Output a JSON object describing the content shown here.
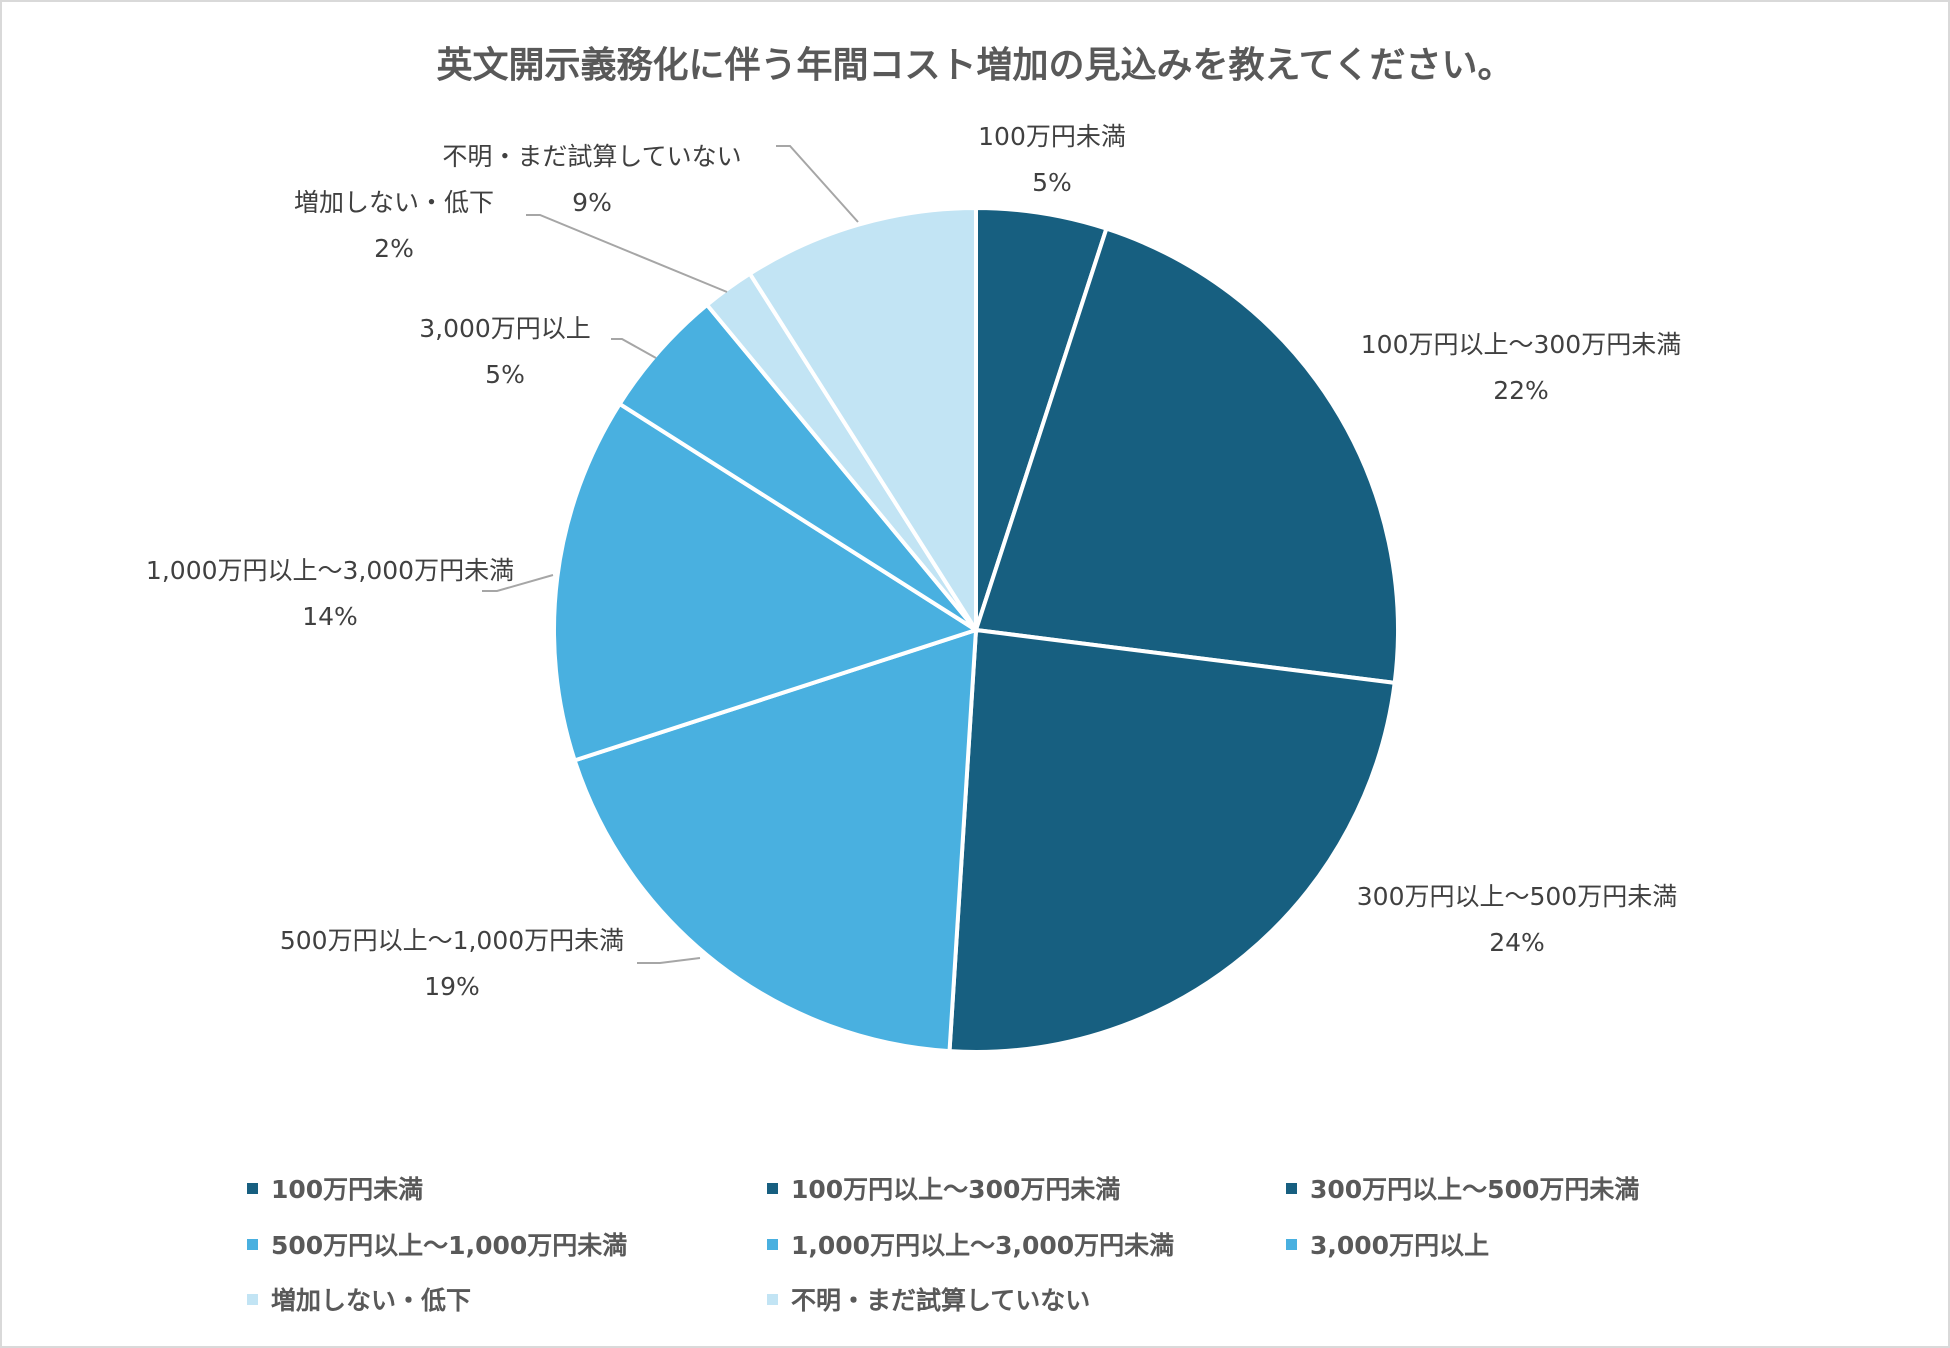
{
  "chart_data": {
    "type": "pie",
    "title": "英文開示義務化に伴う年間コスト増加の見込みを教えてください。",
    "categories": [
      "100万円未満",
      "100万円以上～300万円未満",
      "300万円以上～500万円未満",
      "500万円以上～1,000万円未満",
      "1,000万円以上～3,000万円未満",
      "3,000万円以上",
      "増加しない・低下",
      "不明・まだ試算していない"
    ],
    "values": [
      5,
      22,
      24,
      19,
      14,
      5,
      2,
      9
    ],
    "value_labels": [
      "5%",
      "22%",
      "24%",
      "19%",
      "14%",
      "5%",
      "2%",
      "9%"
    ],
    "unit": "%",
    "colors": [
      "#175f80",
      "#175f80",
      "#175f80",
      "#49b0e0",
      "#49b0e0",
      "#49b0e0",
      "#c2e4f4",
      "#c2e4f4"
    ],
    "start_angle_deg": 0,
    "direction": "clockwise",
    "legend_position": "bottom",
    "data_labels": "outside with leader lines"
  },
  "title": "英文開示義務化に伴う年間コスト増加の見込みを教えてください。",
  "labels": [
    {
      "name": "100万円未満",
      "pct": "5%"
    },
    {
      "name": "100万円以上～300万円未満",
      "pct": "22%"
    },
    {
      "name": "300万円以上～500万円未満",
      "pct": "24%"
    },
    {
      "name": "500万円以上～1,000万円未満",
      "pct": "19%"
    },
    {
      "name": "1,000万円以上～3,000万円未満",
      "pct": "14%"
    },
    {
      "name": "3,000万円以上",
      "pct": "5%"
    },
    {
      "name": "増加しない・低下",
      "pct": "2%"
    },
    {
      "name": "不明・まだ試算していない",
      "pct": "9%"
    }
  ],
  "legend": [
    {
      "label": "100万円未満",
      "color": "#175f80"
    },
    {
      "label": "100万円以上～300万円未満",
      "color": "#175f80"
    },
    {
      "label": "300万円以上～500万円未満",
      "color": "#175f80"
    },
    {
      "label": "500万円以上～1,000万円未満",
      "color": "#49b0e0"
    },
    {
      "label": "1,000万円以上～3,000万円未満",
      "color": "#49b0e0"
    },
    {
      "label": "3,000万円以上",
      "color": "#49b0e0"
    },
    {
      "label": "増加しない・低下",
      "color": "#c2e4f4"
    },
    {
      "label": "不明・まだ試算していない",
      "color": "#c2e4f4"
    }
  ]
}
